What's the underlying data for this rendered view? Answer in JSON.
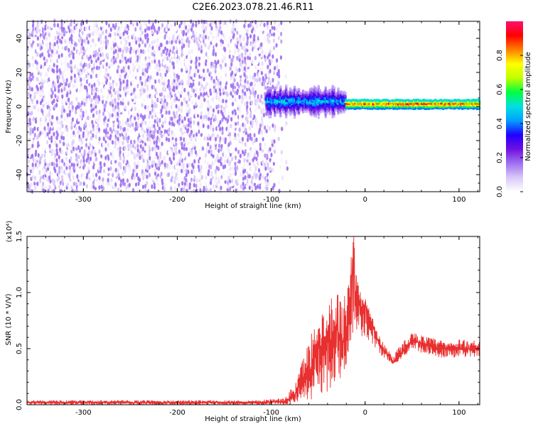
{
  "page_title": "C2E6.2023.078.21.46.R11",
  "colors": {
    "series_line": "#e83030",
    "axis": "#000000",
    "background": "#ffffff"
  },
  "chart_data": [
    {
      "type": "heatmap",
      "title": "C2E6.2023.078.21.46.R11",
      "xlabel": "Height of straight line (km)",
      "ylabel": "Frequency (Hz)",
      "xlim": [
        -360,
        122
      ],
      "ylim": [
        -50,
        50
      ],
      "x_ticks": [
        -300,
        -200,
        -100,
        0,
        100
      ],
      "y_ticks": [
        -40,
        -20,
        0,
        20,
        40
      ],
      "colorbar": {
        "label": "Normalized spectral amplitude",
        "range": [
          0.0,
          1.0
        ],
        "ticks": [
          "0.0",
          "0.2",
          "0.4",
          "0.6",
          "0.8"
        ],
        "colormap": [
          "#ffffff",
          "#d8c8f8",
          "#a070f0",
          "#7010e0",
          "#2000ff",
          "#00a0ff",
          "#00e0e0",
          "#00ff40",
          "#c0ff00",
          "#ffff00",
          "#ff8000",
          "#ff0000",
          "#ff1070"
        ]
      },
      "regions": [
        {
          "name": "noise",
          "x_range": [
            -360,
            -85
          ],
          "y_range": [
            -50,
            50
          ],
          "amplitude_range": [
            0.0,
            0.12
          ]
        },
        {
          "name": "signal-broad",
          "x_range": [
            -105,
            -20
          ],
          "y_center": 3,
          "y_halfwidth": 8,
          "amplitude_range": [
            0.1,
            0.55
          ]
        },
        {
          "name": "signal-narrow",
          "x_range": [
            -20,
            122
          ],
          "y_center": 1.5,
          "y_halfwidth": 2.5,
          "amplitude_range": [
            0.4,
            1.0
          ]
        }
      ]
    },
    {
      "type": "line",
      "xlabel": "Height of straight line (km)",
      "ylabel": "SNR (10 * V/V)",
      "y_scale_label": "(x10⁴)",
      "xlim": [
        -360,
        122
      ],
      "ylim": [
        0,
        1.5
      ],
      "x_ticks": [
        -300,
        -200,
        -100,
        0,
        100
      ],
      "y_ticks": [
        "0.0",
        "0.5",
        "1.0",
        "1.5"
      ],
      "series": [
        {
          "x": [
            -360,
            -300,
            -200,
            -120,
            -85,
            -75,
            -65,
            -55,
            -50,
            -45,
            -40,
            -35,
            -30,
            -25,
            -20,
            -15,
            -12,
            -10,
            -8,
            -5,
            0,
            5,
            10,
            15,
            20,
            30,
            40,
            50,
            60,
            70,
            80,
            90,
            100,
            110,
            122
          ],
          "y": [
            0.02,
            0.02,
            0.02,
            0.02,
            0.03,
            0.08,
            0.25,
            0.35,
            0.55,
            0.45,
            0.65,
            0.55,
            0.7,
            0.55,
            0.65,
            1.0,
            1.5,
            0.95,
            1.1,
            0.85,
            0.9,
            0.75,
            0.65,
            0.55,
            0.48,
            0.38,
            0.48,
            0.58,
            0.55,
            0.52,
            0.5,
            0.49,
            0.5,
            0.5,
            0.5
          ],
          "envelope_min": [
            0.0,
            0.0,
            0.0,
            0.0,
            0.0,
            0.02,
            0.03,
            0.05,
            0.1,
            0.08,
            0.1,
            0.15,
            0.2,
            0.25,
            0.35,
            0.5,
            0.55,
            0.55,
            0.6,
            0.6,
            0.6,
            0.55,
            0.5,
            0.45,
            0.42,
            0.35,
            0.42,
            0.48,
            0.46,
            0.44,
            0.42,
            0.42,
            0.42,
            0.42,
            0.42
          ],
          "envelope_max": [
            0.04,
            0.04,
            0.04,
            0.04,
            0.06,
            0.2,
            0.45,
            0.7,
            0.95,
            0.85,
            0.95,
            1.0,
            1.05,
            0.9,
            1.1,
            1.35,
            1.55,
            1.2,
            1.1,
            1.0,
            0.95,
            0.85,
            0.72,
            0.62,
            0.55,
            0.45,
            0.56,
            0.65,
            0.62,
            0.6,
            0.58,
            0.56,
            0.58,
            0.58,
            0.6
          ]
        }
      ]
    }
  ]
}
